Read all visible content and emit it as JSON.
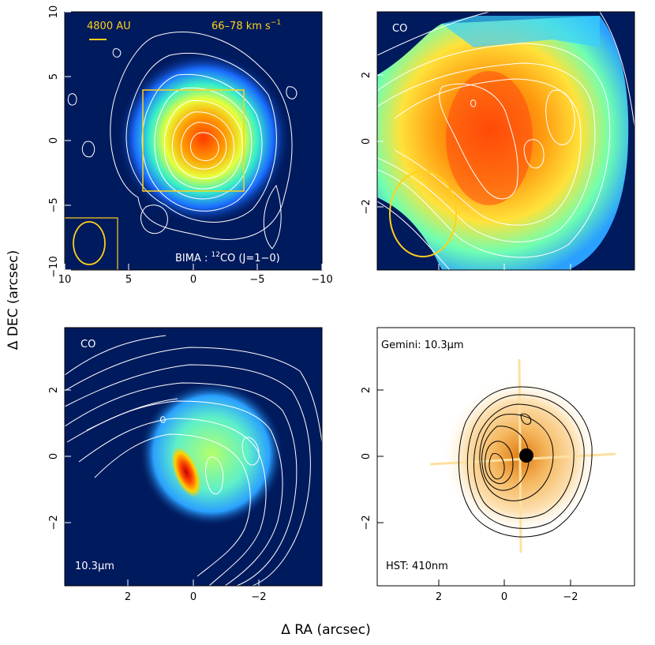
{
  "figure": {
    "ylabel": "Δ DEC (arcsec)",
    "xlabel": "Δ RA (arcsec)",
    "colors": {
      "background_dark": "#001a5e",
      "contour_white": "#ffffff",
      "contour_black": "#000000",
      "annotation_yellow": "#ffd21a"
    }
  },
  "panels": {
    "top_left": {
      "scale_label": "4800 AU",
      "velocity_label": "66–78 km s",
      "velocity_exp": "−1",
      "instrument_label": "BIMA : ",
      "line_iso": "12",
      "line_label": "CO (J=1−0)",
      "x_ticks": [
        "10",
        "5",
        "0",
        "−5",
        "−10"
      ],
      "y_ticks": [
        "10",
        "5",
        "0",
        "−5",
        "−10"
      ]
    },
    "top_right": {
      "label": "CO",
      "y_ticks": [
        "2",
        "0",
        "−2"
      ]
    },
    "bottom_left": {
      "label_top": "CO",
      "label_bottom": "10.3μm",
      "x_ticks": [
        "2",
        "0",
        "−2"
      ],
      "y_ticks": [
        "2",
        "0",
        "−2"
      ]
    },
    "bottom_right": {
      "label_top": "Gemini: 10.3μm",
      "label_bottom": "HST: 410nm",
      "x_ticks": [
        "2",
        "0",
        "−2"
      ],
      "y_ticks": [
        "2",
        "0",
        "−2"
      ]
    }
  }
}
